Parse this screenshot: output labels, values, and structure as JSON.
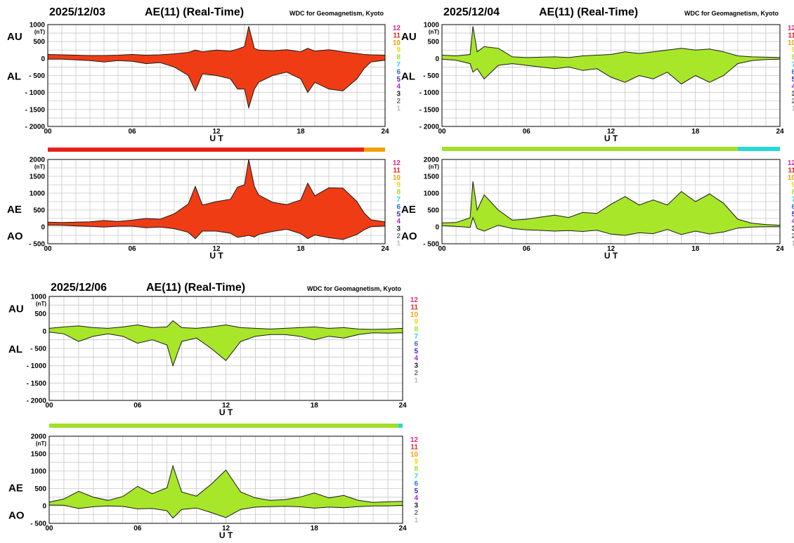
{
  "figure": {
    "source_label": "WDC for Geomagnetism, Kyoto",
    "title": "AE(11) (Real-Time)",
    "unit_label": "(nT)",
    "x_label": "U T",
    "upper_labels": [
      "AU",
      "AL"
    ],
    "lower_labels": [
      "AE",
      "AO"
    ],
    "activity_levels": [
      "12",
      "11",
      "10",
      "9",
      "8",
      "7",
      "6",
      "5",
      "4",
      "3",
      "2",
      "1"
    ],
    "level_colors": {
      "12": "#e8228c",
      "11": "#e8221a",
      "10": "#f0a000",
      "9": "#f0d800",
      "8": "#a0e028",
      "7": "#28d8d8",
      "6": "#2870e0",
      "5": "#4020d0",
      "4": "#b020d8",
      "3": "#202020",
      "2": "#707070",
      "1": "#b8b8b8"
    }
  },
  "chart_data": [
    {
      "type": "area",
      "date": "2025/12/03",
      "x_unit": "hours UT",
      "x_ticks": [
        "00",
        "06",
        "12",
        "18",
        "24"
      ],
      "upper": {
        "yrange": [
          -2000,
          1000
        ],
        "y_ticks": [
          "1000",
          "500",
          "0",
          "- 500",
          "- 1000",
          "- 1500",
          "- 2000"
        ],
        "fill_color": "#f03c14",
        "series": [
          {
            "name": "AU",
            "x": [
              0,
              1,
              2,
              3,
              4,
              5,
              6,
              7,
              8,
              9,
              10,
              10.5,
              11,
              12,
              13,
              13.5,
              14,
              14.3,
              14.7,
              15,
              16,
              17,
              18,
              18.5,
              19,
              20,
              21,
              22,
              22.5,
              23,
              24
            ],
            "y": [
              120,
              110,
              100,
              90,
              90,
              100,
              120,
              100,
              110,
              140,
              180,
              250,
              200,
              250,
              220,
              280,
              350,
              950,
              300,
              250,
              230,
              260,
              200,
              300,
              220,
              260,
              200,
              150,
              120,
              110,
              100
            ]
          },
          {
            "name": "AL",
            "x": [
              0,
              1,
              2,
              3,
              4,
              5,
              6,
              7,
              8,
              9,
              10,
              10.5,
              11,
              12,
              13,
              13.5,
              14,
              14.3,
              14.7,
              15,
              16,
              17,
              18,
              18.5,
              19,
              20,
              21,
              22,
              22.5,
              23,
              24
            ],
            "y": [
              -20,
              -20,
              -40,
              -60,
              -100,
              -60,
              -80,
              -150,
              -120,
              -250,
              -500,
              -950,
              -450,
              -500,
              -600,
              -900,
              -900,
              -1450,
              -900,
              -700,
              -500,
              -400,
              -600,
              -1000,
              -700,
              -900,
              -950,
              -600,
              -300,
              -100,
              -50
            ]
          }
        ]
      },
      "level_bar": [
        {
          "start": 0,
          "end": 22.5,
          "level": "11"
        },
        {
          "start": 22.5,
          "end": 24,
          "level": "10"
        }
      ],
      "lower": {
        "yrange": [
          -500,
          2000
        ],
        "y_ticks": [
          "2000",
          "1500",
          "1000",
          "500",
          "0",
          "- 500"
        ],
        "fill_color": "#f03c14",
        "series": [
          {
            "name": "AE",
            "x": [
              0,
              1,
              2,
              3,
              4,
              5,
              6,
              7,
              8,
              9,
              10,
              10.5,
              11,
              12,
              13,
              13.5,
              14,
              14.3,
              14.7,
              15,
              16,
              17,
              18,
              18.5,
              19,
              20,
              21,
              22,
              22.5,
              23,
              24
            ],
            "y": [
              140,
              130,
              140,
              150,
              190,
              160,
              200,
              250,
              230,
              390,
              680,
              1200,
              650,
              750,
              820,
              1180,
              1250,
              2000,
              1200,
              950,
              730,
              660,
              800,
              1300,
              920,
              1160,
              1150,
              750,
              420,
              210,
              150
            ]
          },
          {
            "name": "AO",
            "x": [
              0,
              1,
              2,
              3,
              4,
              5,
              6,
              7,
              8,
              9,
              10,
              10.5,
              11,
              12,
              13,
              13.5,
              14,
              14.3,
              14.7,
              15,
              16,
              17,
              18,
              18.5,
              19,
              20,
              21,
              22,
              22.5,
              23,
              24
            ],
            "y": [
              50,
              45,
              30,
              15,
              -5,
              20,
              20,
              -25,
              -5,
              -55,
              -160,
              -350,
              -125,
              -125,
              -190,
              -310,
              -275,
              -250,
              -300,
              -225,
              -135,
              -70,
              -200,
              -350,
              -240,
              -320,
              -375,
              -225,
              -90,
              5,
              25
            ]
          }
        ]
      }
    },
    {
      "type": "area",
      "date": "2025/12/04",
      "x_unit": "hours UT",
      "x_ticks": [
        "00",
        "06",
        "12",
        "18",
        "24"
      ],
      "upper": {
        "yrange": [
          -2000,
          1000
        ],
        "y_ticks": [
          "1000",
          "500",
          "0",
          "- 500",
          "- 1000",
          "- 1500",
          "- 2000"
        ],
        "fill_color": "#a8e62a",
        "series": [
          {
            "name": "AU",
            "x": [
              0,
              1,
              2,
              2.2,
              2.5,
              3,
              4,
              5,
              6,
              7,
              8,
              9,
              10,
              11,
              12,
              13,
              14,
              15,
              16,
              17,
              18,
              19,
              20,
              21,
              22,
              23,
              24
            ],
            "y": [
              100,
              80,
              120,
              950,
              200,
              350,
              300,
              50,
              30,
              40,
              50,
              30,
              80,
              100,
              120,
              200,
              150,
              200,
              250,
              300,
              250,
              280,
              200,
              80,
              50,
              40,
              30
            ]
          },
          {
            "name": "AL",
            "x": [
              0,
              1,
              2,
              2.2,
              2.5,
              3,
              4,
              5,
              6,
              7,
              8,
              9,
              10,
              11,
              12,
              13,
              14,
              15,
              16,
              17,
              18,
              19,
              20,
              21,
              22,
              23,
              24
            ],
            "y": [
              -20,
              -50,
              -150,
              -400,
              -300,
              -600,
              -200,
              -150,
              -200,
              -250,
              -300,
              -250,
              -350,
              -300,
              -550,
              -700,
              -500,
              -600,
              -400,
              -750,
              -500,
              -700,
              -500,
              -150,
              -60,
              -30,
              -20
            ]
          }
        ]
      },
      "level_bar": [
        {
          "start": 0,
          "end": 21,
          "level": "8"
        },
        {
          "start": 21,
          "end": 24,
          "level": "7"
        }
      ],
      "lower": {
        "yrange": [
          -500,
          2000
        ],
        "y_ticks": [
          "2000",
          "1500",
          "1000",
          "500",
          "0",
          "- 500"
        ],
        "fill_color": "#a8e62a",
        "series": [
          {
            "name": "AE",
            "x": [
              0,
              1,
              2,
              2.2,
              2.5,
              3,
              4,
              5,
              6,
              7,
              8,
              9,
              10,
              11,
              12,
              13,
              14,
              15,
              16,
              17,
              18,
              19,
              20,
              21,
              22,
              23,
              24
            ],
            "y": [
              120,
              130,
              270,
              1350,
              500,
              950,
              500,
              200,
              230,
              290,
              350,
              280,
              430,
              400,
              670,
              900,
              650,
              800,
              650,
              1050,
              750,
              980,
              700,
              230,
              110,
              70,
              50
            ]
          },
          {
            "name": "AO",
            "x": [
              0,
              1,
              2,
              2.2,
              2.5,
              3,
              4,
              5,
              6,
              7,
              8,
              9,
              10,
              11,
              12,
              13,
              14,
              15,
              16,
              17,
              18,
              19,
              20,
              21,
              22,
              23,
              24
            ],
            "y": [
              40,
              15,
              -15,
              275,
              -50,
              -125,
              50,
              -50,
              -85,
              -105,
              -125,
              -110,
              -135,
              -100,
              -215,
              -250,
              -175,
              -200,
              -75,
              -225,
              -125,
              -210,
              -150,
              -35,
              -5,
              5,
              5
            ]
          }
        ]
      }
    },
    {
      "type": "area",
      "date": "2025/12/06",
      "x_unit": "hours UT",
      "x_ticks": [
        "00",
        "06",
        "12",
        "18",
        "24"
      ],
      "upper": {
        "yrange": [
          -2000,
          1000
        ],
        "y_ticks": [
          "1000",
          "500",
          "0",
          "- 500",
          "- 1000",
          "- 1500",
          "- 2000"
        ],
        "fill_color": "#a8e62a",
        "series": [
          {
            "name": "AU",
            "x": [
              0,
              1,
              2,
              3,
              4,
              5,
              6,
              7,
              8,
              8.4,
              9,
              10,
              11,
              12,
              13,
              14,
              15,
              16,
              17,
              18,
              19,
              20,
              21,
              22,
              23,
              24
            ],
            "y": [
              80,
              120,
              150,
              100,
              80,
              120,
              180,
              100,
              120,
              300,
              100,
              80,
              120,
              180,
              100,
              80,
              60,
              80,
              100,
              120,
              80,
              100,
              60,
              50,
              60,
              80
            ]
          },
          {
            "name": "AL",
            "x": [
              0,
              1,
              2,
              3,
              4,
              5,
              6,
              7,
              8,
              8.4,
              9,
              10,
              11,
              12,
              13,
              14,
              15,
              16,
              17,
              18,
              19,
              20,
              21,
              22,
              23,
              24
            ],
            "y": [
              -30,
              -80,
              -300,
              -150,
              -80,
              -150,
              -350,
              -250,
              -400,
              -1000,
              -300,
              -200,
              -500,
              -850,
              -300,
              -150,
              -100,
              -100,
              -150,
              -250,
              -150,
              -200,
              -100,
              -50,
              -60,
              -50
            ]
          }
        ]
      },
      "level_bar": [
        {
          "start": 0,
          "end": 23.7,
          "level": "8"
        },
        {
          "start": 23.7,
          "end": 24,
          "level": "7"
        }
      ],
      "lower": {
        "yrange": [
          -500,
          2000
        ],
        "y_ticks": [
          "2000",
          "1500",
          "1000",
          "500",
          "0",
          "- 500"
        ],
        "fill_color": "#a8e62a",
        "series": [
          {
            "name": "AE",
            "x": [
              0,
              1,
              2,
              3,
              4,
              5,
              6,
              7,
              8,
              8.4,
              9,
              10,
              11,
              12,
              13,
              14,
              15,
              16,
              17,
              18,
              19,
              20,
              21,
              22,
              23,
              24
            ],
            "y": [
              110,
              200,
              420,
              250,
              160,
              270,
              560,
              350,
              520,
              1150,
              400,
              280,
              620,
              1030,
              400,
              230,
              160,
              180,
              250,
              370,
              230,
              300,
              160,
              100,
              120,
              130
            ]
          },
          {
            "name": "AO",
            "x": [
              0,
              1,
              2,
              3,
              4,
              5,
              6,
              7,
              8,
              8.4,
              9,
              10,
              11,
              12,
              13,
              14,
              15,
              16,
              17,
              18,
              19,
              20,
              21,
              22,
              23,
              24
            ],
            "y": [
              25,
              20,
              -75,
              -25,
              0,
              -15,
              -85,
              -75,
              -140,
              -350,
              -100,
              -60,
              -190,
              -335,
              -100,
              -35,
              -20,
              -10,
              -25,
              -65,
              -35,
              -50,
              -20,
              0,
              0,
              15
            ]
          }
        ]
      }
    }
  ]
}
